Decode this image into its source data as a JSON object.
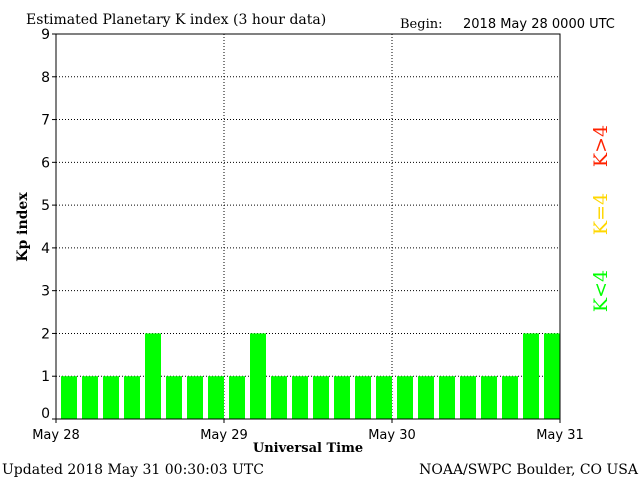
{
  "chart_data": {
    "type": "bar",
    "title": "Estimated Planetary K index (3 hour data)",
    "begin_label": "Begin:",
    "begin_value": "2018 May 28 0000 UTC",
    "xlabel": "Universal Time",
    "ylabel": "Kp index",
    "ylim": [
      0,
      9
    ],
    "yticks": [
      "0",
      "1",
      "2",
      "3",
      "4",
      "5",
      "6",
      "7",
      "8",
      "9"
    ],
    "xticks": [
      "May 28",
      "May 29",
      "May 30",
      "May 31"
    ],
    "values": [
      1,
      1,
      1,
      1,
      2,
      1,
      1,
      1,
      1,
      2,
      1,
      1,
      1,
      1,
      1,
      1,
      1,
      1,
      1,
      1,
      1,
      1,
      2,
      2
    ],
    "legend": [
      {
        "label": "K<4",
        "color": "#00ff00"
      },
      {
        "label": "K=4",
        "color": "#ffd700"
      },
      {
        "label": "K>4",
        "color": "#ff2200"
      }
    ],
    "grid": true,
    "bar_color": "#00ff00"
  },
  "footer": {
    "updated": "Updated 2018 May 31 00:30:03 UTC",
    "source": "NOAA/SWPC Boulder, CO USA"
  }
}
